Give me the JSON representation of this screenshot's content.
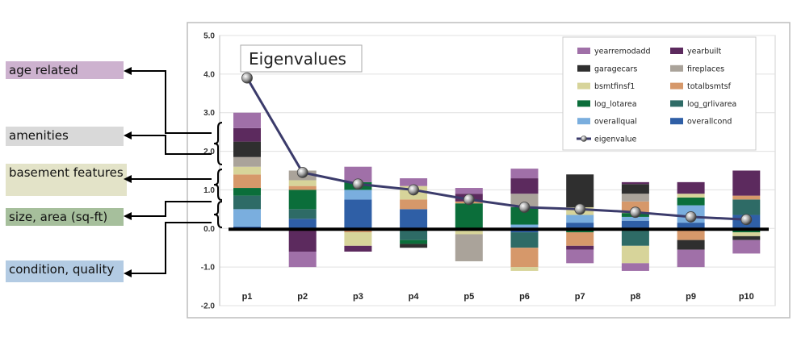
{
  "categories": [
    {
      "key": "age",
      "label": "age related",
      "color": "#cdb2cf"
    },
    {
      "key": "amen",
      "label": "amenities",
      "color": "#d9d9d9"
    },
    {
      "key": "base",
      "label": "basement features",
      "color": "#e3e3c8"
    },
    {
      "key": "size",
      "label": "size, area (sq-ft)",
      "color": "#a6bf9c"
    },
    {
      "key": "cond",
      "label": "condition, quality",
      "color": "#b3cbe3"
    }
  ],
  "chart_data": {
    "type": "bar",
    "title": "Eigenvalues",
    "categories": [
      "p1",
      "p2",
      "p3",
      "p4",
      "p5",
      "p6",
      "p7",
      "p8",
      "p9",
      "p10"
    ],
    "ylim": [
      -2.0,
      5.0
    ],
    "yticks": [
      "5.0",
      "4.0",
      "3.0",
      "2.0",
      "1.0",
      "0.0",
      "-1.0",
      "-2.0"
    ],
    "stack_order": [
      "overallcond",
      "overallqual",
      "log_grlivarea",
      "log_lotarea",
      "totalbsmtsf",
      "bsmtfinsf1",
      "fireplaces",
      "garagecars",
      "yearbuilt",
      "yearremodadd"
    ],
    "series": [
      {
        "name": "yearremodadd",
        "color": "#a070a8",
        "values": [
          0.4,
          -0.4,
          0.4,
          0.2,
          0.15,
          0.25,
          -0.35,
          -0.2,
          -0.45,
          -0.35
        ]
      },
      {
        "name": "yearbuilt",
        "color": "#5c2a5e",
        "values": [
          0.35,
          -0.55,
          -0.15,
          0.0,
          0.2,
          0.4,
          -0.1,
          0.05,
          0.3,
          0.65
        ]
      },
      {
        "name": "garagecars",
        "color": "#2f2f2f",
        "values": [
          0.4,
          0.0,
          0.0,
          -0.1,
          0.0,
          0.0,
          0.85,
          0.25,
          -0.25,
          -0.1
        ]
      },
      {
        "name": "fireplaces",
        "color": "#aaa39a",
        "values": [
          0.25,
          0.25,
          0.0,
          0.0,
          -0.7,
          0.35,
          0.0,
          0.2,
          0.0,
          0.0
        ]
      },
      {
        "name": "bsmtfinsf1",
        "color": "#d7d49a",
        "values": [
          0.2,
          0.15,
          -0.35,
          0.35,
          -0.1,
          -0.1,
          0.2,
          -0.45,
          0.1,
          -0.1
        ]
      },
      {
        "name": "totalbsmtsf",
        "color": "#d6986a",
        "values": [
          0.35,
          0.1,
          -0.1,
          0.25,
          0.05,
          -0.5,
          -0.35,
          0.3,
          -0.3,
          0.1
        ]
      },
      {
        "name": "log_lotarea",
        "color": "#0b6e3a",
        "values": [
          0.2,
          0.5,
          0.2,
          -0.1,
          0.65,
          0.45,
          -0.1,
          0.1,
          0.2,
          -0.05
        ]
      },
      {
        "name": "log_grlivarea",
        "color": "#2e6b66",
        "values": [
          0.35,
          0.25,
          0.0,
          -0.3,
          0.0,
          -0.4,
          0.0,
          -0.45,
          0.0,
          0.4
        ]
      },
      {
        "name": "overallqual",
        "color": "#7aaede",
        "values": [
          0.45,
          -0.05,
          0.25,
          0.0,
          -0.05,
          0.1,
          0.2,
          0.1,
          0.45,
          -0.05
        ]
      },
      {
        "name": "overallcond",
        "color": "#2f5fa6",
        "values": [
          0.05,
          0.25,
          0.75,
          0.5,
          0.0,
          -0.1,
          0.15,
          0.2,
          0.15,
          0.35
        ]
      }
    ],
    "line": {
      "name": "eigenvalue",
      "color": "#3b3b6b",
      "values": [
        3.9,
        1.45,
        1.15,
        1.0,
        0.75,
        0.55,
        0.5,
        0.42,
        0.3,
        0.23
      ]
    }
  }
}
